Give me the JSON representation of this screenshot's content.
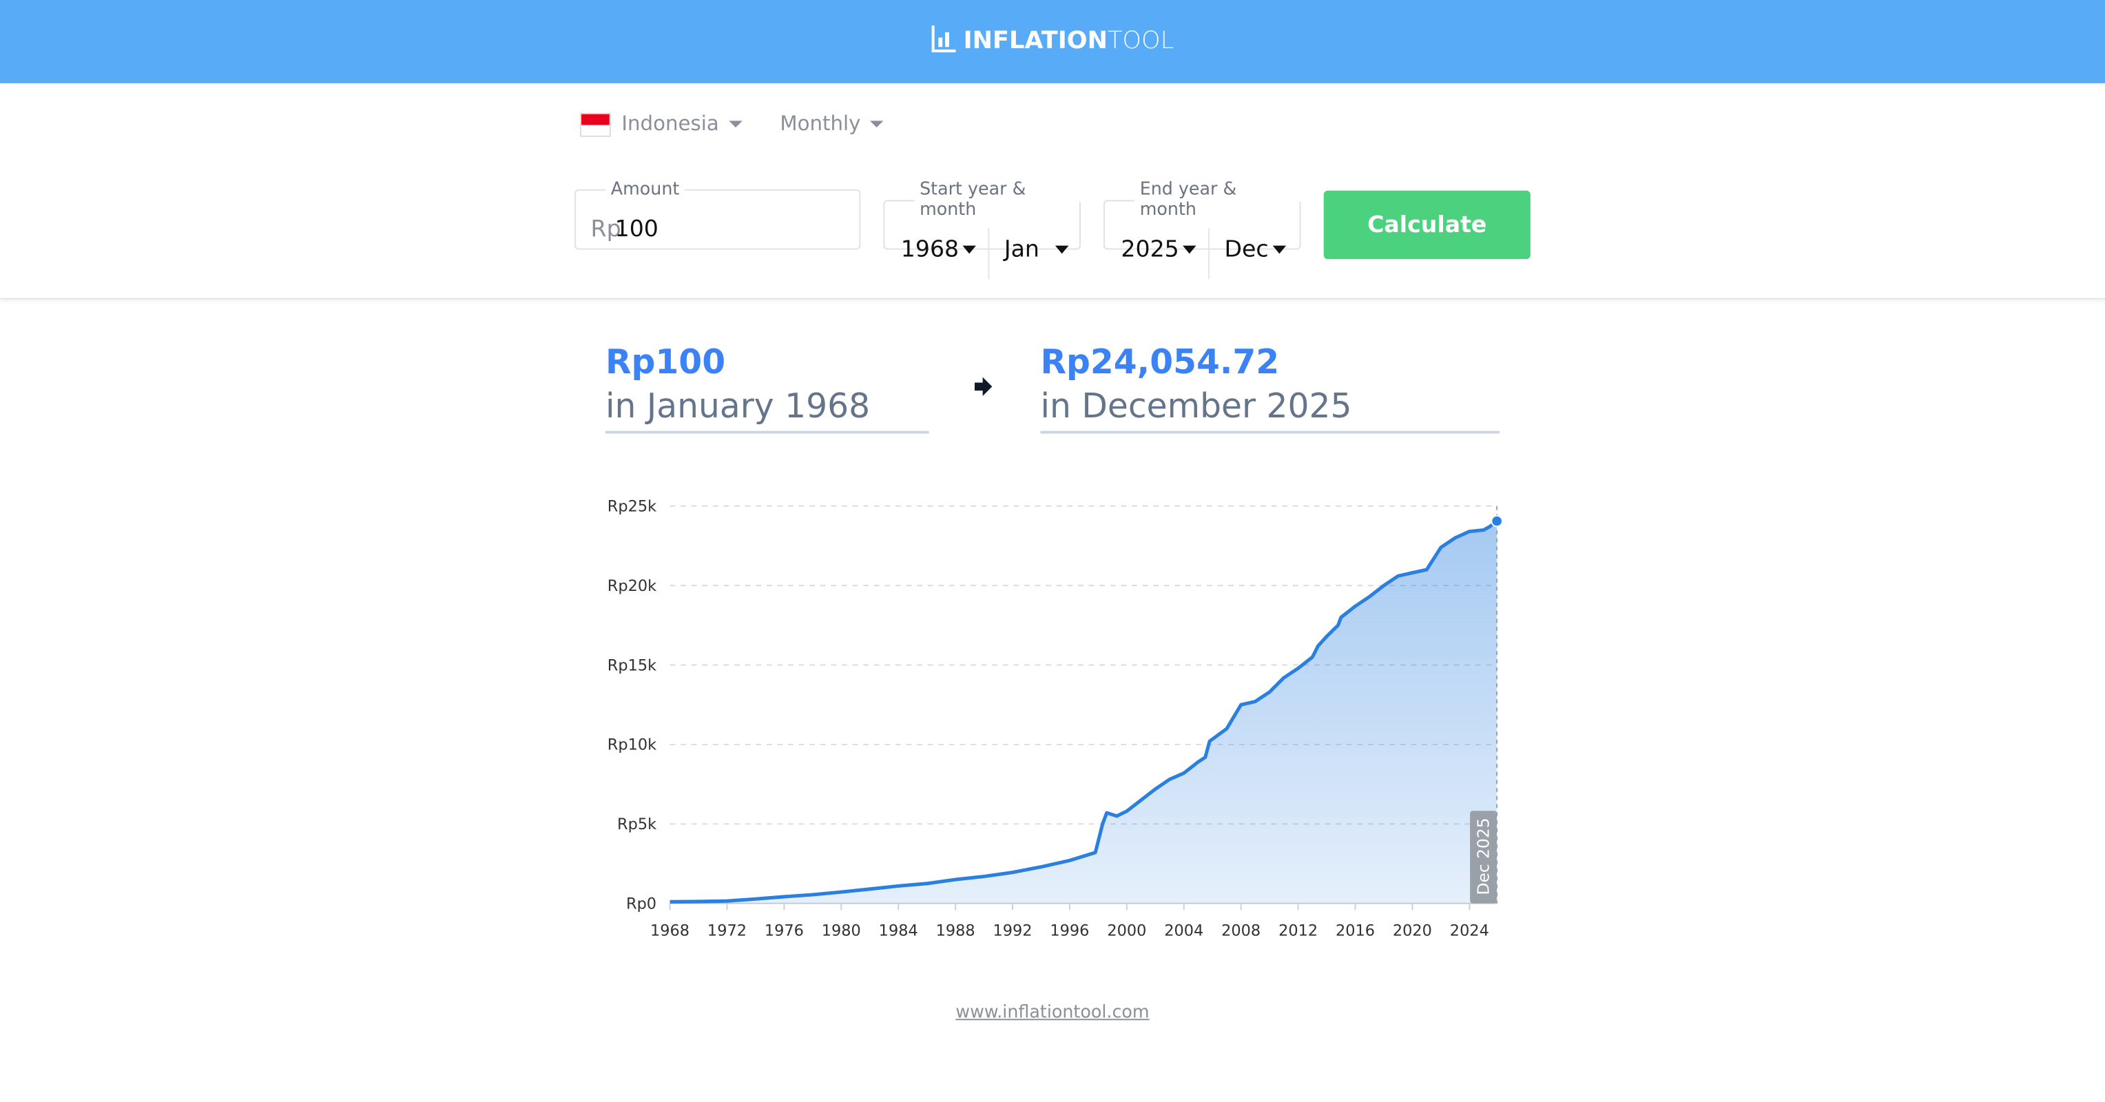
{
  "header": {
    "logo_bold": "INFLATION",
    "logo_light": "TOOL",
    "logo_icon": "bar-chart-icon",
    "color": "#58acf7"
  },
  "controls": {
    "country": "Indonesia",
    "country_flag": "indonesia-flag-icon",
    "frequency": "Monthly"
  },
  "form": {
    "amount_label": "Amount",
    "currency_prefix": "Rp",
    "amount_value": "100",
    "start_label": "Start year & month",
    "start_year": "1968",
    "start_month": "Jan",
    "end_label": "End year & month",
    "end_year": "2025",
    "end_month": "Dec",
    "calculate_label": "Calculate",
    "calculate_color": "#4cd27e"
  },
  "result": {
    "from_amount": "Rp100",
    "from_date": "in January 1968",
    "to_amount": "Rp24,054.72",
    "to_date": "in December 2025",
    "accent": "#3b82f6"
  },
  "chart_data": {
    "type": "area",
    "x_ticks": [
      "1968",
      "1972",
      "1976",
      "1980",
      "1984",
      "1988",
      "1992",
      "1996",
      "2000",
      "2004",
      "2008",
      "2012",
      "2016",
      "2020",
      "2024"
    ],
    "y_ticks": [
      {
        "v": 0,
        "label": "Rp0"
      },
      {
        "v": 5000,
        "label": "Rp5k"
      },
      {
        "v": 10000,
        "label": "Rp10k"
      },
      {
        "v": 15000,
        "label": "Rp15k"
      },
      {
        "v": 20000,
        "label": "Rp20k"
      },
      {
        "v": 25000,
        "label": "Rp25k"
      }
    ],
    "xlim": [
      1968,
      2025.92
    ],
    "ylim": [
      0,
      25000
    ],
    "grid": true,
    "line_color": "#2a7fe0",
    "marker_label": "Dec 2025",
    "points": [
      [
        1968,
        100
      ],
      [
        1970,
        120
      ],
      [
        1972,
        150
      ],
      [
        1974,
        280
      ],
      [
        1976,
        420
      ],
      [
        1978,
        550
      ],
      [
        1980,
        720
      ],
      [
        1982,
        900
      ],
      [
        1984,
        1100
      ],
      [
        1986,
        1250
      ],
      [
        1988,
        1500
      ],
      [
        1990,
        1700
      ],
      [
        1992,
        1950
      ],
      [
        1994,
        2300
      ],
      [
        1996,
        2700
      ],
      [
        1997.8,
        3200
      ],
      [
        1998.3,
        5000
      ],
      [
        1998.6,
        5700
      ],
      [
        1999.3,
        5500
      ],
      [
        2000,
        5800
      ],
      [
        2001,
        6500
      ],
      [
        2002,
        7200
      ],
      [
        2003,
        7800
      ],
      [
        2004,
        8200
      ],
      [
        2005,
        8900
      ],
      [
        2005.5,
        9200
      ],
      [
        2005.8,
        10200
      ],
      [
        2007,
        11000
      ],
      [
        2008,
        12500
      ],
      [
        2009,
        12700
      ],
      [
        2010,
        13300
      ],
      [
        2011,
        14200
      ],
      [
        2012,
        14800
      ],
      [
        2013,
        15500
      ],
      [
        2013.4,
        16200
      ],
      [
        2014,
        16800
      ],
      [
        2014.8,
        17500
      ],
      [
        2015,
        18000
      ],
      [
        2016,
        18700
      ],
      [
        2017,
        19300
      ],
      [
        2018,
        20000
      ],
      [
        2019,
        20600
      ],
      [
        2020,
        20800
      ],
      [
        2021,
        21000
      ],
      [
        2022,
        22400
      ],
      [
        2023,
        23000
      ],
      [
        2024,
        23400
      ],
      [
        2025,
        23500
      ],
      [
        2025.4,
        23700
      ],
      [
        2025.92,
        24054.72
      ]
    ]
  },
  "footer": {
    "link": "www.inflationtool.com"
  }
}
